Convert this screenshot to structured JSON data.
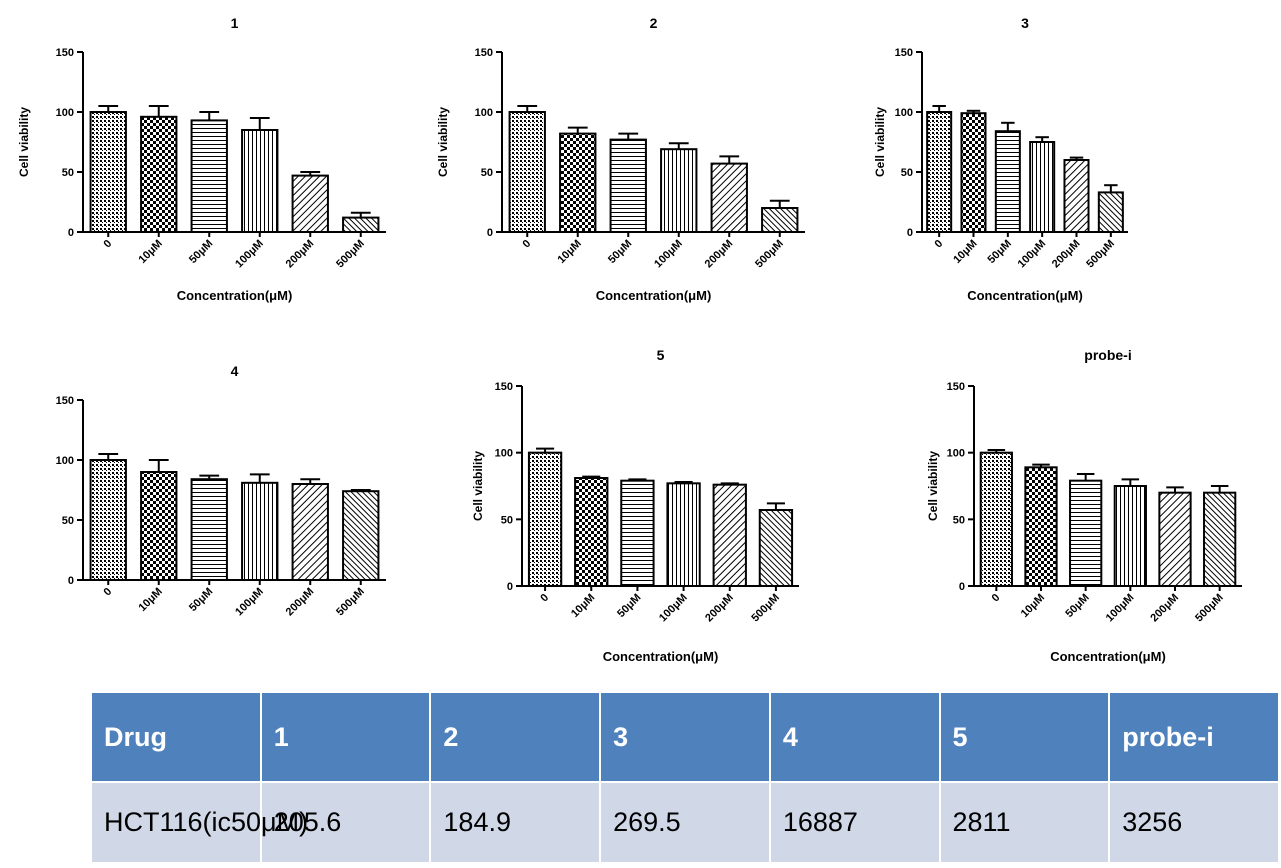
{
  "chart_data": [
    {
      "type": "bar",
      "title": "1",
      "xlabel": "Concentration(μM)",
      "ylabel": "Cell viability",
      "ylim": [
        0,
        150
      ],
      "yticks": [
        0,
        50,
        100,
        150
      ],
      "categories": [
        "0",
        "10μM",
        "50μM",
        "100μM",
        "200μM",
        "500μM"
      ],
      "values": [
        100,
        96,
        93,
        85,
        47,
        12
      ],
      "errors": [
        5,
        9,
        7,
        10,
        3,
        4
      ]
    },
    {
      "type": "bar",
      "title": "2",
      "xlabel": "Concentration(μM)",
      "ylabel": "Cell viability",
      "ylim": [
        0,
        150
      ],
      "yticks": [
        0,
        50,
        100,
        150
      ],
      "categories": [
        "0",
        "10μM",
        "50μM",
        "100μM",
        "200μM",
        "500μM"
      ],
      "values": [
        100,
        82,
        77,
        69,
        57,
        20
      ],
      "errors": [
        5,
        5,
        5,
        5,
        6,
        6
      ]
    },
    {
      "type": "bar",
      "title": "3",
      "xlabel": "Concentration(μM)",
      "ylabel": "Cell viability",
      "ylim": [
        0,
        150
      ],
      "yticks": [
        0,
        50,
        100,
        150
      ],
      "categories": [
        "0",
        "10μM",
        "50μM",
        "100μM",
        "200μM",
        "500μM"
      ],
      "values": [
        100,
        99,
        84,
        75,
        60,
        33
      ],
      "errors": [
        5,
        2,
        7,
        4,
        2,
        6
      ]
    },
    {
      "type": "bar",
      "title": "4",
      "xlabel": "",
      "ylabel": "",
      "ylim": [
        0,
        150
      ],
      "yticks": [
        0,
        50,
        100,
        150
      ],
      "categories": [
        "0",
        "10μM",
        "50μM",
        "100μM",
        "200μM",
        "500μM"
      ],
      "values": [
        100,
        90,
        84,
        81,
        80,
        74
      ],
      "errors": [
        5,
        10,
        3,
        7,
        4,
        1
      ]
    },
    {
      "type": "bar",
      "title": "5",
      "xlabel": "Concentration(μM)",
      "ylabel": "Cell viability",
      "ylim": [
        0,
        150
      ],
      "yticks": [
        0,
        50,
        100,
        150
      ],
      "categories": [
        "0",
        "10μM",
        "50μM",
        "100μM",
        "200μM",
        "500μM"
      ],
      "values": [
        100,
        81,
        79,
        77,
        76,
        57
      ],
      "errors": [
        3,
        1,
        1,
        1,
        1,
        5
      ]
    },
    {
      "type": "bar",
      "title": "probe-i",
      "xlabel": "Concentration(μM)",
      "ylabel": "Cell viability",
      "ylim": [
        0,
        150
      ],
      "yticks": [
        0,
        50,
        100,
        150
      ],
      "categories": [
        "0",
        "10μM",
        "50μM",
        "100μM",
        "200μM",
        "500μM"
      ],
      "values": [
        100,
        89,
        79,
        75,
        70,
        70
      ],
      "errors": [
        2,
        2,
        5,
        5,
        4,
        5
      ]
    }
  ],
  "table": {
    "headers": [
      "Drug",
      "1",
      "2",
      "3",
      "4",
      "5",
      "probe-i"
    ],
    "rows": [
      [
        "HCT116(ic50μM)",
        "205.6",
        "184.9",
        "269.5",
        "16887",
        "2811",
        "3256"
      ]
    ]
  }
}
